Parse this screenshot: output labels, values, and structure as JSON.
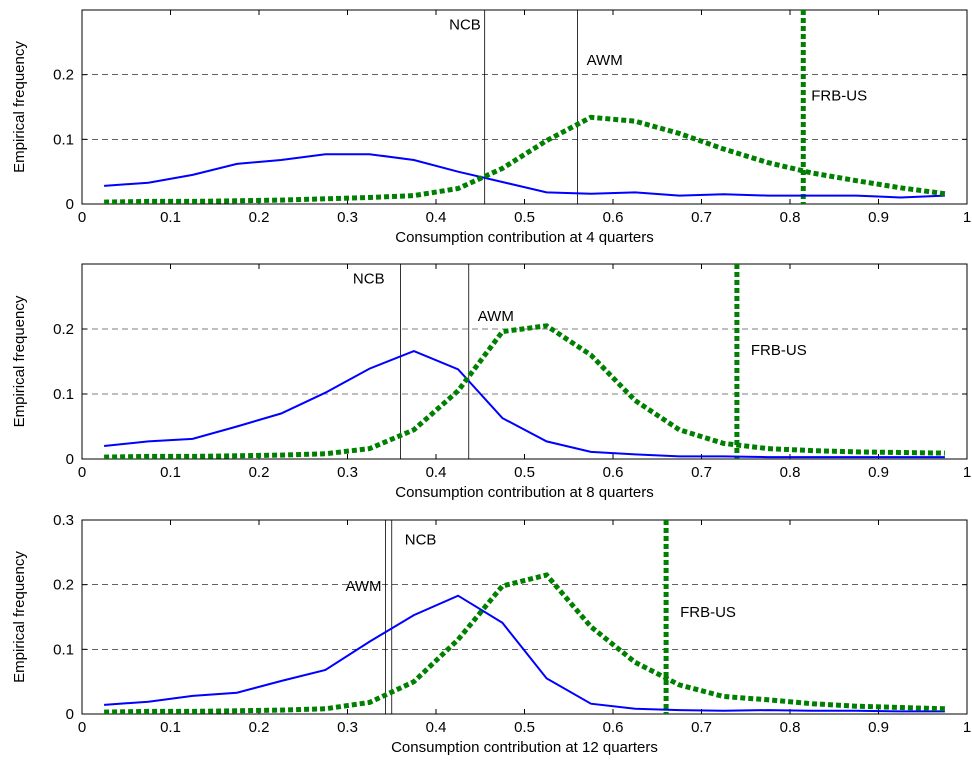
{
  "colors": {
    "background": "#ffffff",
    "axes": "#000000",
    "grid": "#000000",
    "blue_series": "#0000ff",
    "green_series": "#008000",
    "vline": "#000000"
  },
  "chart_data": [
    {
      "type": "line",
      "title": "",
      "xlabel": "Consumption contribution at 4 quarters",
      "ylabel": "Empirical frequency",
      "xlim": [
        0,
        1
      ],
      "ylim": [
        0,
        0.3
      ],
      "xticks": [
        0,
        0.1,
        0.2,
        0.3,
        0.4,
        0.5,
        0.6,
        0.7,
        0.8,
        0.9,
        1
      ],
      "xtick_labels": [
        "0",
        "0.1",
        "0.2",
        "0.3",
        "0.4",
        "0.5",
        "0.6",
        "0.7",
        "0.8",
        "0.9",
        "1"
      ],
      "yticks": [
        0,
        0.1,
        0.2
      ],
      "ytick_labels": [
        "0",
        "0.1",
        "0.2"
      ],
      "grid": "horizontal dashed",
      "x": [
        0.025,
        0.075,
        0.125,
        0.175,
        0.225,
        0.275,
        0.325,
        0.375,
        0.425,
        0.475,
        0.525,
        0.575,
        0.625,
        0.675,
        0.725,
        0.775,
        0.825,
        0.875,
        0.925,
        0.975
      ],
      "series": [
        {
          "style": "solid",
          "color": "#0000ff",
          "values": [
            0.028,
            0.033,
            0.045,
            0.062,
            0.068,
            0.077,
            0.077,
            0.068,
            0.05,
            0.034,
            0.018,
            0.016,
            0.018,
            0.013,
            0.015,
            0.013,
            0.013,
            0.013,
            0.01,
            0.013
          ]
        },
        {
          "style": "dotted",
          "color": "#008000",
          "values": [
            0.003,
            0.004,
            0.004,
            0.005,
            0.006,
            0.008,
            0.01,
            0.013,
            0.024,
            0.055,
            0.098,
            0.134,
            0.128,
            0.109,
            0.085,
            0.064,
            0.048,
            0.036,
            0.025,
            0.016
          ]
        }
      ],
      "vertical_lines": [
        {
          "label": "NCB",
          "x": 0.455,
          "style": "thin-solid"
        },
        {
          "label": "AWM",
          "x": 0.56,
          "style": "thin-solid"
        },
        {
          "label": "FRB-US",
          "x": 0.815,
          "style": "thick-dotted"
        }
      ]
    },
    {
      "type": "line",
      "title": "",
      "xlabel": "Consumption contribution at 8 quarters",
      "ylabel": "Empirical frequency",
      "xlim": [
        0,
        1
      ],
      "ylim": [
        0,
        0.3
      ],
      "xticks": [
        0,
        0.1,
        0.2,
        0.3,
        0.4,
        0.5,
        0.6,
        0.7,
        0.8,
        0.9,
        1
      ],
      "xtick_labels": [
        "0",
        "0.1",
        "0.2",
        "0.3",
        "0.4",
        "0.5",
        "0.6",
        "0.7",
        "0.8",
        "0.9",
        "1"
      ],
      "yticks": [
        0,
        0.1,
        0.2
      ],
      "ytick_labels": [
        "0",
        "0.1",
        "0.2"
      ],
      "grid": "horizontal dashed",
      "x": [
        0.025,
        0.075,
        0.125,
        0.175,
        0.225,
        0.275,
        0.325,
        0.375,
        0.425,
        0.475,
        0.525,
        0.575,
        0.625,
        0.675,
        0.725,
        0.775,
        0.825,
        0.875,
        0.925,
        0.975
      ],
      "series": [
        {
          "style": "solid",
          "color": "#0000ff",
          "values": [
            0.02,
            0.027,
            0.031,
            0.05,
            0.07,
            0.102,
            0.139,
            0.166,
            0.138,
            0.063,
            0.027,
            0.011,
            0.007,
            0.004,
            0.004,
            0.003,
            0.003,
            0.003,
            0.003,
            0.003
          ]
        },
        {
          "style": "dotted",
          "color": "#008000",
          "values": [
            0.003,
            0.004,
            0.004,
            0.005,
            0.006,
            0.008,
            0.016,
            0.045,
            0.105,
            0.196,
            0.205,
            0.16,
            0.09,
            0.045,
            0.024,
            0.016,
            0.013,
            0.011,
            0.01,
            0.009
          ]
        }
      ],
      "vertical_lines": [
        {
          "label": "NCB",
          "x": 0.36,
          "style": "thin-solid"
        },
        {
          "label": "AWM",
          "x": 0.437,
          "style": "thin-solid"
        },
        {
          "label": "FRB-US",
          "x": 0.74,
          "style": "thick-dotted"
        }
      ]
    },
    {
      "type": "line",
      "title": "",
      "xlabel": "Consumption contribution at 12 quarters",
      "ylabel": "Empirical frequency",
      "xlim": [
        0,
        1
      ],
      "ylim": [
        0,
        0.3
      ],
      "xticks": [
        0,
        0.1,
        0.2,
        0.3,
        0.4,
        0.5,
        0.6,
        0.7,
        0.8,
        0.9,
        1
      ],
      "xtick_labels": [
        "0",
        "0.1",
        "0.2",
        "0.3",
        "0.4",
        "0.5",
        "0.6",
        "0.7",
        "0.8",
        "0.9",
        "1"
      ],
      "yticks": [
        0,
        0.1,
        0.2,
        0.3
      ],
      "ytick_labels": [
        "0",
        "0.1",
        "0.2",
        "0.3"
      ],
      "grid": "horizontal dashed",
      "x": [
        0.025,
        0.075,
        0.125,
        0.175,
        0.225,
        0.275,
        0.325,
        0.375,
        0.425,
        0.475,
        0.525,
        0.575,
        0.625,
        0.675,
        0.725,
        0.775,
        0.825,
        0.875,
        0.925,
        0.975
      ],
      "series": [
        {
          "style": "solid",
          "color": "#0000ff",
          "values": [
            0.014,
            0.019,
            0.028,
            0.033,
            0.051,
            0.068,
            0.112,
            0.153,
            0.183,
            0.141,
            0.055,
            0.016,
            0.008,
            0.006,
            0.005,
            0.006,
            0.005,
            0.005,
            0.004,
            0.004
          ]
        },
        {
          "style": "dotted",
          "color": "#008000",
          "values": [
            0.003,
            0.004,
            0.004,
            0.005,
            0.006,
            0.008,
            0.018,
            0.05,
            0.115,
            0.198,
            0.215,
            0.135,
            0.08,
            0.045,
            0.027,
            0.022,
            0.016,
            0.012,
            0.01,
            0.008
          ]
        }
      ],
      "vertical_lines": [
        {
          "label": "AWM",
          "x": 0.343,
          "style": "thin-solid"
        },
        {
          "label": "NCB",
          "x": 0.35,
          "style": "thin-solid"
        },
        {
          "label": "FRB-US",
          "x": 0.66,
          "style": "thick-dotted"
        }
      ]
    }
  ]
}
